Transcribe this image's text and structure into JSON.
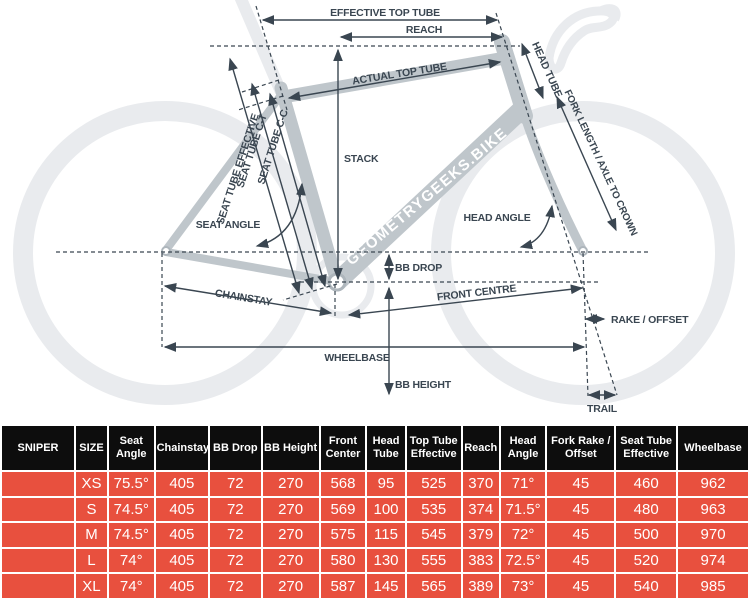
{
  "colors": {
    "accent_red": "#e8503e",
    "header_black": "#0d0d0d",
    "dimension_ink": "#3a4651",
    "frame_gray": "#bfc6cb",
    "ghost_gray": "#e9ebee"
  },
  "diagram": {
    "watermark": "GEOMETRYGEEKS.BIKE",
    "labels": {
      "effective_top_tube": "EFFECTIVE TOP TUBE",
      "reach": "REACH",
      "actual_top_tube": "ACTUAL TOP TUBE",
      "head_tube": "HEAD TUBE",
      "fork_length": "FORK LENGTH / AXLE TO CROWN",
      "seat_tube_cc": "SEAT TUBE C-C",
      "seat_tube_ct": "SEAT TUBE C-T",
      "seat_tube_effective": "SEAT TUBE EFFECTIVE",
      "stack": "STACK",
      "seat_angle": "SEAT ANGLE",
      "head_angle": "HEAD ANGLE",
      "bb_drop": "BB DROP",
      "chainstay": "CHAINSTAY",
      "front_centre": "FRONT CENTRE",
      "rake_offset": "RAKE / OFFSET",
      "wheelbase": "WHEELBASE",
      "bb_height": "BB HEIGHT",
      "trail": "TRAIL"
    }
  },
  "table": {
    "model": "SNIPER",
    "columns": [
      "SIZE",
      "Seat Angle",
      "Chainstay",
      "BB Drop",
      "BB Height",
      "Front Center",
      "Head Tube",
      "Top Tube Effective",
      "Reach",
      "Head Angle",
      "Fork Rake / Offset",
      "Seat Tube Effective",
      "Wheelbase"
    ],
    "col_widths_pct": [
      10,
      4.3,
      6.2,
      7.3,
      7,
      7.8,
      6.2,
      5.2,
      7.5,
      5,
      6.2,
      9.3,
      8.3,
      9.7
    ],
    "rows": [
      {
        "size": "XS",
        "values": [
          "75.5°",
          "405",
          "72",
          "270",
          "568",
          "95",
          "525",
          "370",
          "71°",
          "45",
          "460",
          "962"
        ]
      },
      {
        "size": "S",
        "values": [
          "74.5°",
          "405",
          "72",
          "270",
          "569",
          "100",
          "535",
          "374",
          "71.5°",
          "45",
          "480",
          "963"
        ]
      },
      {
        "size": "M",
        "values": [
          "74.5°",
          "405",
          "72",
          "270",
          "575",
          "115",
          "545",
          "379",
          "72°",
          "45",
          "500",
          "970"
        ]
      },
      {
        "size": "L",
        "values": [
          "74°",
          "405",
          "72",
          "270",
          "580",
          "130",
          "555",
          "383",
          "72.5°",
          "45",
          "520",
          "974"
        ]
      },
      {
        "size": "XL",
        "values": [
          "74°",
          "405",
          "72",
          "270",
          "587",
          "145",
          "565",
          "389",
          "73°",
          "45",
          "540",
          "985"
        ]
      }
    ]
  }
}
